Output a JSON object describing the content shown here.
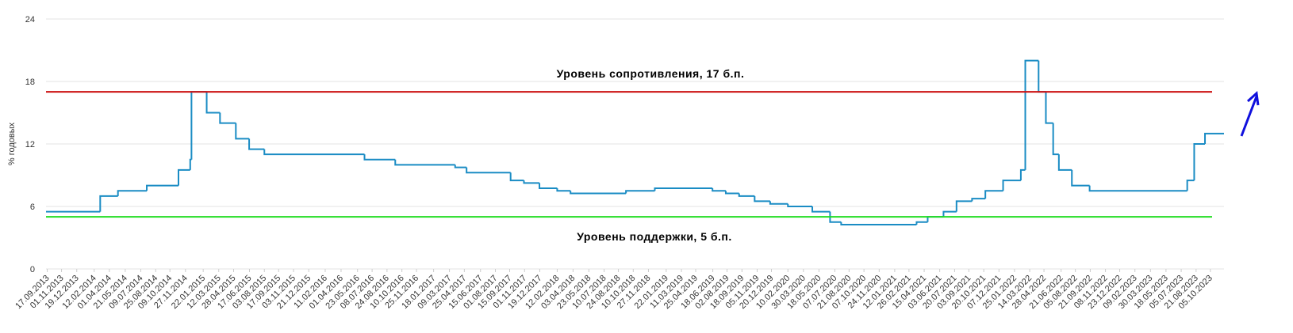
{
  "chart_data": {
    "type": "step-line",
    "y_label": "% годовых",
    "ylim": [
      0,
      24
    ],
    "yticks": [
      0,
      6,
      12,
      18,
      24
    ],
    "grid": true,
    "xlim": [
      "13.09.2013",
      "17.11.2023"
    ],
    "xticks": [
      "17.09.2013",
      "01.11.2013",
      "19.12.2013",
      "12.02.2014",
      "01.04.2014",
      "21.05.2014",
      "09.07.2014",
      "25.08.2014",
      "09.10.2014",
      "27.11.2014",
      "22.01.2015",
      "12.03.2015",
      "28.04.2015",
      "17.06.2015",
      "03.08.2015",
      "17.09.2015",
      "03.11.2015",
      "21.12.2015",
      "11.02.2016",
      "01.04.2016",
      "23.05.2016",
      "08.07.2016",
      "24.08.2016",
      "10.10.2016",
      "25.11.2016",
      "18.01.2017",
      "09.03.2017",
      "25.04.2017",
      "15.06.2017",
      "01.08.2017",
      "15.09.2017",
      "01.11.2017",
      "19.12.2017",
      "12.02.2018",
      "03.04.2018",
      "23.05.2018",
      "10.07.2018",
      "24.08.2018",
      "10.10.2018",
      "27.11.2018",
      "22.01.2019",
      "11.03.2019",
      "25.04.2019",
      "18.06.2019",
      "02.08.2019",
      "18.09.2019",
      "05.11.2019",
      "20.12.2019",
      "10.02.2020",
      "30.03.2020",
      "18.05.2020",
      "07.07.2020",
      "21.08.2020",
      "07.10.2020",
      "24.11.2020",
      "12.01.2021",
      "26.02.2021",
      "15.04.2021",
      "03.06.2021",
      "20.07.2021",
      "03.09.2021",
      "20.10.2021",
      "07.12.2021",
      "25.01.2022",
      "14.03.2022",
      "28.04.2022",
      "21.06.2022",
      "05.08.2022",
      "21.09.2022",
      "08.11.2022",
      "23.12.2022",
      "09.02.2023",
      "30.03.2023",
      "18.05.2023",
      "05.07.2023",
      "21.08.2023",
      "05.10.2023"
    ],
    "series": [
      {
        "color": "#1a8cc4",
        "x": [
          "13.09.2013",
          "03.03.2014",
          "28.04.2014",
          "28.07.2014",
          "05.11.2014",
          "12.12.2014",
          "16.12.2014",
          "02.02.2015",
          "16.03.2015",
          "05.05.2015",
          "16.06.2015",
          "03.08.2015",
          "14.06.2016",
          "19.09.2016",
          "27.03.2017",
          "02.05.2017",
          "18.09.2017",
          "30.10.2017",
          "18.12.2017",
          "12.02.2018",
          "26.03.2018",
          "17.09.2018",
          "17.12.2018",
          "17.06.2019",
          "29.07.2019",
          "09.09.2019",
          "28.10.2019",
          "16.12.2019",
          "10.02.2020",
          "27.04.2020",
          "22.06.2020",
          "27.07.2020",
          "22.03.2021",
          "26.04.2021",
          "15.06.2021",
          "26.07.2021",
          "13.09.2021",
          "25.10.2021",
          "20.12.2021",
          "14.02.2022",
          "28.02.2022",
          "11.04.2022",
          "04.05.2022",
          "27.05.2022",
          "14.06.2022",
          "25.07.2022",
          "19.09.2022",
          "24.07.2023",
          "15.08.2023",
          "18.09.2023"
        ],
        "values": [
          5.5,
          7,
          7.5,
          8,
          9.5,
          10.5,
          17,
          15,
          14,
          12.5,
          11.5,
          11,
          10.5,
          10,
          9.75,
          9.25,
          8.5,
          8.25,
          7.75,
          7.5,
          7.25,
          7.5,
          7.75,
          7.5,
          7.25,
          7,
          6.5,
          6.25,
          6,
          5.5,
          4.5,
          4.25,
          4.5,
          5,
          5.5,
          6.5,
          6.75,
          7.5,
          8.5,
          9.5,
          20,
          17,
          14,
          11,
          9.5,
          8,
          7.5,
          8.5,
          12,
          13
        ]
      }
    ],
    "reference_lines": [
      {
        "label": "Уровень сопротивления, 17 б.п.",
        "value": 17,
        "color": "#cc1111"
      },
      {
        "label": "Уровень поддержки, 5 б.п.",
        "value": 5,
        "color": "#22dd22"
      }
    ]
  }
}
